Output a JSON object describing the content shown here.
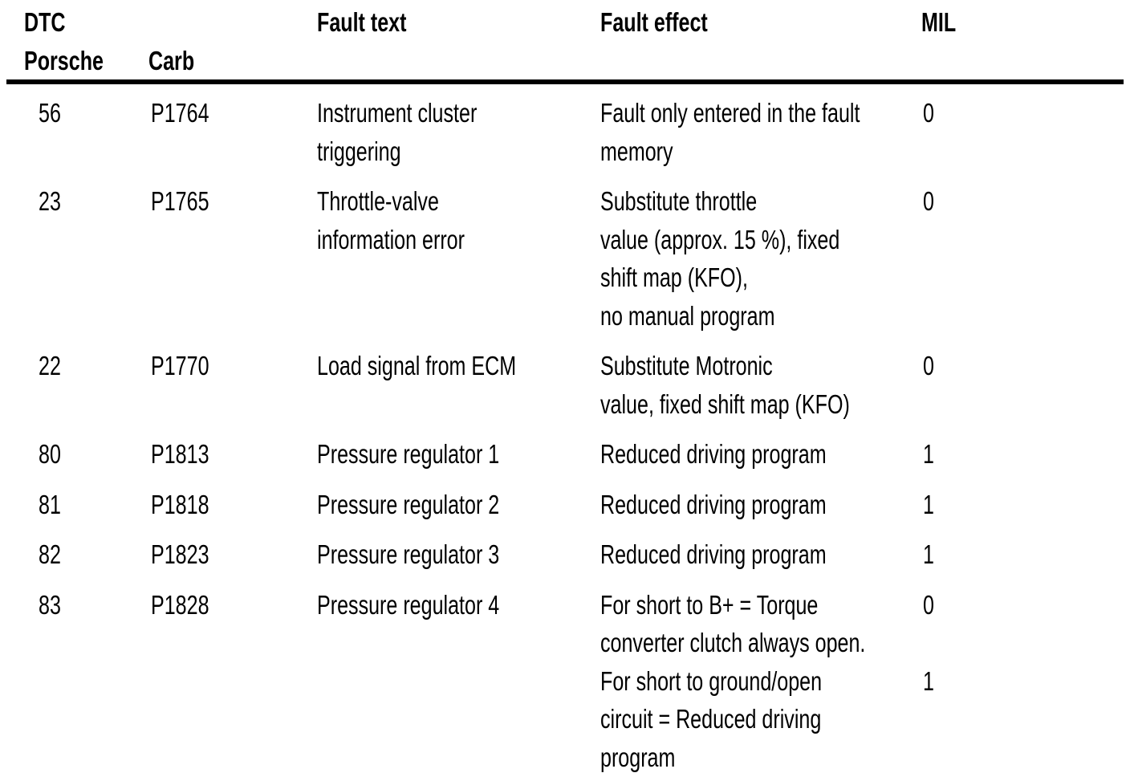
{
  "colors": {
    "text": "#000000",
    "background": "#ffffff",
    "rule": "#000000"
  },
  "table": {
    "headers": {
      "dtc": "DTC",
      "porsche": "Porsche",
      "carb": "Carb",
      "fault_text": "Fault text",
      "fault_effect": "Fault effect",
      "mil": "MIL"
    },
    "rows": [
      {
        "porsche": "56",
        "carb": "P1764",
        "fault_text": "Instrument cluster\ntriggering",
        "effects": [
          {
            "text": "Fault only entered in the fault\nmemory",
            "mil": "0"
          }
        ]
      },
      {
        "porsche": "23",
        "carb": "P1765",
        "fault_text": "Throttle-valve\ninformation error",
        "effects": [
          {
            "text": "Substitute throttle\nvalue (approx. 15 %), fixed\nshift map (KFO),\nno manual program",
            "mil": "0"
          }
        ]
      },
      {
        "porsche": "22",
        "carb": "P1770",
        "fault_text": "Load signal from ECM",
        "effects": [
          {
            "text": "Substitute Motronic\nvalue, fixed shift map (KFO)",
            "mil": "0"
          }
        ]
      },
      {
        "porsche": "80",
        "carb": "P1813",
        "fault_text": "Pressure regulator 1",
        "effects": [
          {
            "text": "Reduced driving program",
            "mil": "1"
          }
        ]
      },
      {
        "porsche": "81",
        "carb": "P1818",
        "fault_text": "Pressure regulator 2",
        "effects": [
          {
            "text": "Reduced driving program",
            "mil": "1"
          }
        ]
      },
      {
        "porsche": "82",
        "carb": "P1823",
        "fault_text": "Pressure regulator 3",
        "effects": [
          {
            "text": "Reduced driving program",
            "mil": "1"
          }
        ]
      },
      {
        "porsche": "83",
        "carb": "P1828",
        "fault_text": "Pressure regulator 4",
        "effects": [
          {
            "text": "For short to B+ = Torque\nconverter clutch always open.",
            "mil": "0"
          },
          {
            "text": "For short to ground/open\ncircuit = Reduced driving\nprogram",
            "mil": "1"
          }
        ]
      }
    ]
  }
}
